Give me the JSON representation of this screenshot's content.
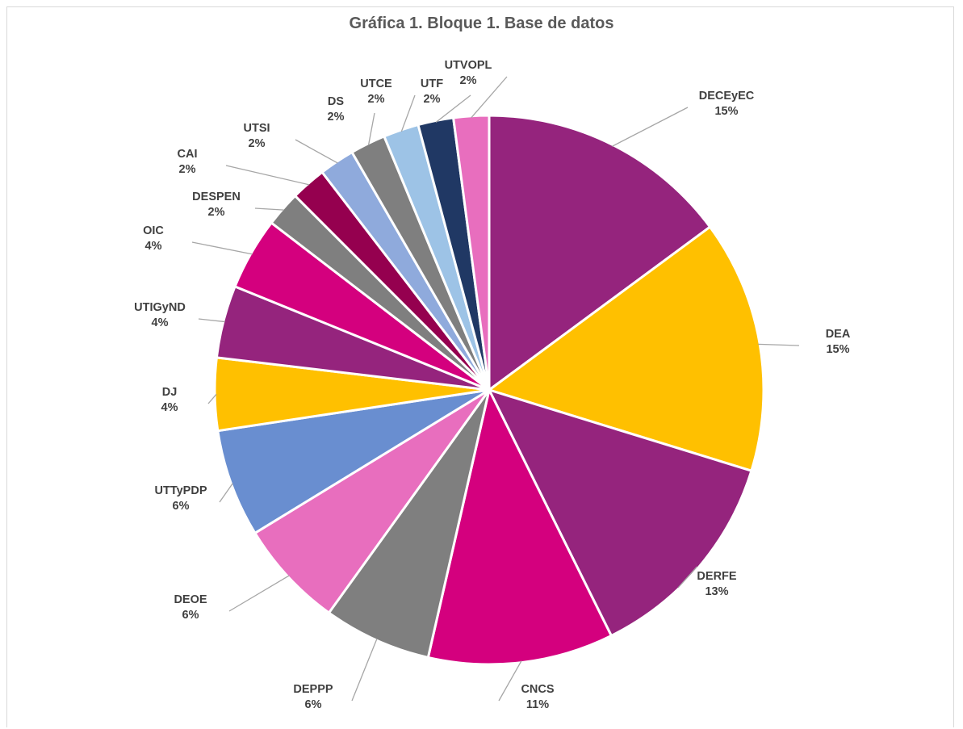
{
  "chart_data": {
    "type": "pie",
    "title": "Gráfica 1. Bloque 1. Base de datos",
    "slices": [
      {
        "label": "DECEyEC",
        "value": 15,
        "percent_label": "15%",
        "color": "#95247d"
      },
      {
        "label": "DEA",
        "value": 15,
        "percent_label": "15%",
        "color": "#ffc000"
      },
      {
        "label": "DERFE",
        "value": 13,
        "percent_label": "13%",
        "color": "#95247d"
      },
      {
        "label": "CNCS",
        "value": 11,
        "percent_label": "11%",
        "color": "#d4007e"
      },
      {
        "label": "DEPPP",
        "value": 6.4,
        "percent_label": "6%",
        "color": "#7f7f7f"
      },
      {
        "label": "DEOE",
        "value": 6.4,
        "percent_label": "6%",
        "color": "#e86ebe"
      },
      {
        "label": "UTTyPDP",
        "value": 6.4,
        "percent_label": "6%",
        "color": "#698ed0"
      },
      {
        "label": "DJ",
        "value": 4.3,
        "percent_label": "4%",
        "color": "#ffc000"
      },
      {
        "label": "UTIGyND",
        "value": 4.3,
        "percent_label": "4%",
        "color": "#95247d"
      },
      {
        "label": "OIC",
        "value": 4.3,
        "percent_label": "4%",
        "color": "#d4007e"
      },
      {
        "label": "DESPEN",
        "value": 2.1,
        "percent_label": "2%",
        "color": "#7f7f7f"
      },
      {
        "label": "CAI",
        "value": 2.1,
        "percent_label": "2%",
        "color": "#95004f"
      },
      {
        "label": "UTSI",
        "value": 2.1,
        "percent_label": "2%",
        "color": "#8faadc"
      },
      {
        "label": "DS",
        "value": 2.1,
        "percent_label": "2%",
        "color": "#7f7f7f"
      },
      {
        "label": "UTCE",
        "value": 2.1,
        "percent_label": "2%",
        "color": "#9dc3e6"
      },
      {
        "label": "UTF",
        "value": 2.1,
        "percent_label": "2%",
        "color": "#203864"
      },
      {
        "label": "UTVOPL",
        "value": 2.1,
        "percent_label": "2%",
        "color": "#e86ebe"
      }
    ],
    "legend": "none",
    "data_labels": "outside with leader lines"
  }
}
